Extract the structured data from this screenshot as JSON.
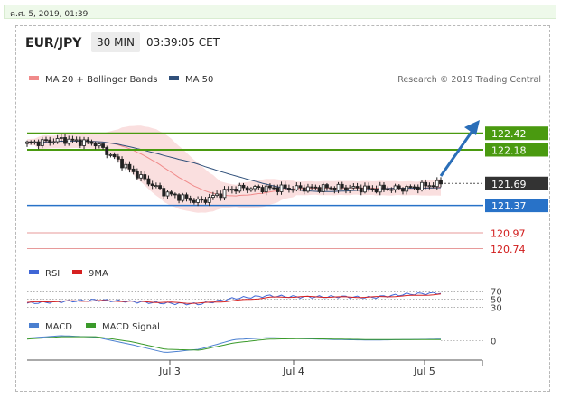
{
  "header": {
    "timestamp": "ค.ศ. 5, 2019, 01:39",
    "pair": "EUR/JPY",
    "timeframe": "30 MIN",
    "time": "03:39:05 CET",
    "credit": "Research © 2019 Trading Central"
  },
  "colors": {
    "resistance": "#4a9a10",
    "pivot": "#333333",
    "support": "#2872c8",
    "target": "#d11a1a",
    "candle": "#222222",
    "bollinger": "#f7caca",
    "ma20": "#f08a8a",
    "ma50": "#30507a",
    "arrow": "#2a6eb8",
    "rsi": "#3f66d6",
    "rsi_9ma": "#d62020",
    "macd": "#4a7fd0",
    "macd_signal": "#3a9a2a"
  },
  "chart_data": [
    {
      "type": "candlestick",
      "title": "EUR/JPY",
      "legend": [
        {
          "name": "MA 20 + Bollinger Bands",
          "color": "#f08a8a"
        },
        {
          "name": "MA 50",
          "color": "#30507a"
        }
      ],
      "x_ticks": [
        "Jul 3",
        "Jul 4",
        "Jul 5"
      ],
      "levels": [
        {
          "value": 122.42,
          "label": "122.42",
          "kind": "resistance"
        },
        {
          "value": 122.18,
          "label": "122.18",
          "kind": "resistance"
        },
        {
          "value": 121.69,
          "label": "121.69",
          "kind": "pivot"
        },
        {
          "value": 121.37,
          "label": "121.37",
          "kind": "support"
        },
        {
          "value": 120.97,
          "label": "120.97",
          "kind": "target"
        },
        {
          "value": 120.74,
          "label": "120.74",
          "kind": "target"
        }
      ],
      "ylim": [
        120.55,
        122.85
      ],
      "x": [
        "Jul 2 06:00",
        "Jul 2 12:00",
        "Jul 2 18:00",
        "Jul 3 00:00",
        "Jul 3 06:00",
        "Jul 3 12:00",
        "Jul 3 18:00",
        "Jul 4 00:00",
        "Jul 4 06:00",
        "Jul 4 12:00",
        "Jul 4 18:00",
        "Jul 5 00:00",
        "Jul 5 02:00"
      ],
      "close": [
        122.27,
        122.33,
        122.27,
        121.88,
        121.55,
        121.42,
        121.62,
        121.62,
        121.62,
        121.63,
        121.61,
        121.62,
        121.69
      ]
    },
    {
      "type": "line",
      "name": "RSI",
      "series": [
        {
          "name": "RSI",
          "color": "#3f66d6",
          "values": [
            40,
            44,
            48,
            44,
            40,
            38,
            52,
            58,
            55,
            56,
            54,
            62,
            65
          ]
        },
        {
          "name": "9MA",
          "color": "#d62020",
          "values": [
            42,
            45,
            46,
            45,
            42,
            40,
            46,
            54,
            56,
            55,
            55,
            58,
            62
          ]
        }
      ],
      "y_ticks": [
        70,
        50,
        30
      ],
      "ylim": [
        20,
        80
      ]
    },
    {
      "type": "line",
      "name": "MACD",
      "series": [
        {
          "name": "MACD",
          "color": "#4a7fd0",
          "values": [
            0.05,
            0.1,
            0.07,
            -0.08,
            -0.25,
            -0.18,
            0.02,
            0.06,
            0.04,
            0.02,
            0.01,
            0.02,
            0.03
          ]
        },
        {
          "name": "MACD Signal",
          "color": "#3a9a2a",
          "values": [
            0.03,
            0.08,
            0.08,
            -0.02,
            -0.18,
            -0.2,
            -0.05,
            0.03,
            0.04,
            0.03,
            0.02,
            0.02,
            0.02
          ]
        }
      ],
      "y_ticks": [
        0
      ],
      "ylim": [
        -0.35,
        0.25
      ]
    }
  ]
}
